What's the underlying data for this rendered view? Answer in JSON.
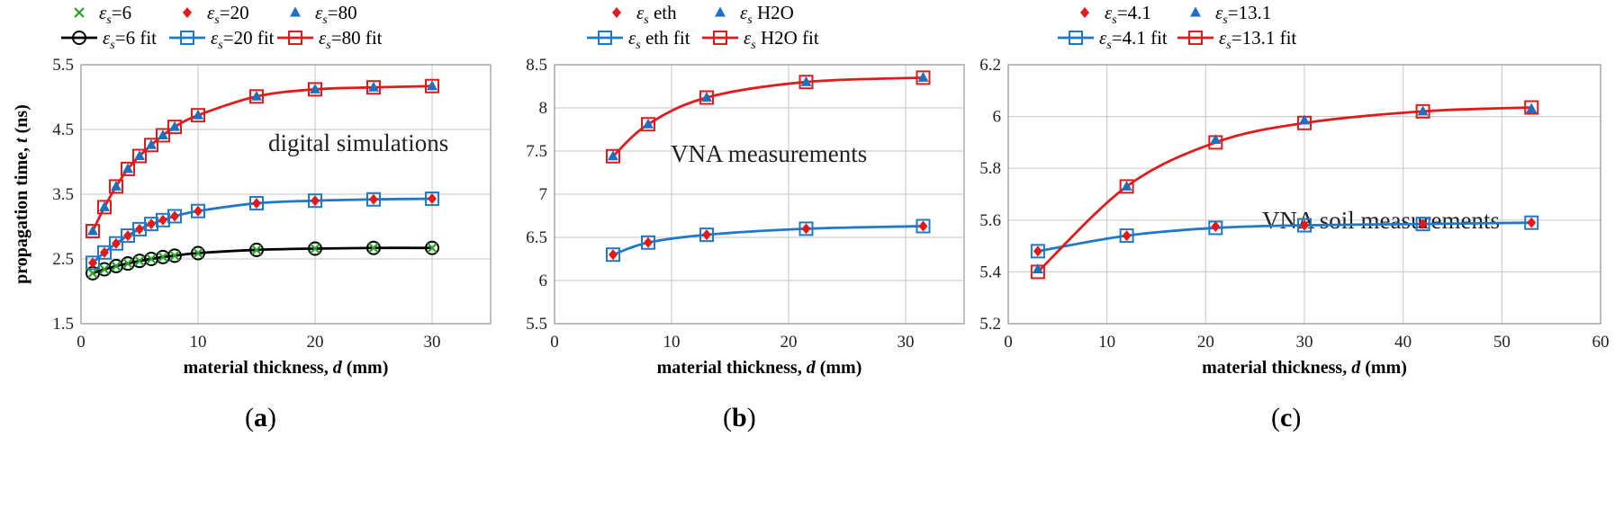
{
  "chart_data": [
    {
      "type": "scatter",
      "panel_label": "(a)",
      "annotation": "digital simulations",
      "xlabel_text": "material thickness, ",
      "xlabel_var": "d",
      "xlabel_unit": " (mm)",
      "ylabel_text": "propagation time, ",
      "ylabel_var": "t",
      "ylabel_unit": " (ns)",
      "xlim": [
        0,
        35
      ],
      "ylim": [
        1.5,
        5.5
      ],
      "xticks": [
        0,
        10,
        20,
        30
      ],
      "yticks": [
        1.5,
        2.5,
        3.5,
        4.5,
        5.5
      ],
      "xtick_labels": [
        "0",
        "10",
        "20",
        "30"
      ],
      "ytick_labels": [
        "1.5",
        "2.5",
        "3.5",
        "4.5",
        "5.5"
      ],
      "grid": true,
      "series": [
        {
          "name": "εs=6",
          "legend_main": "ε",
          "legend_sub": "s",
          "legend_rest": "=6",
          "marker": "x",
          "color": "#2ca02c",
          "x": [
            1,
            2,
            3,
            4,
            5,
            6,
            7,
            8,
            10,
            15,
            20,
            25,
            30
          ],
          "values": [
            2.28,
            2.34,
            2.39,
            2.43,
            2.47,
            2.5,
            2.53,
            2.55,
            2.59,
            2.64,
            2.66,
            2.67,
            2.67
          ]
        },
        {
          "name": "εs=20",
          "legend_main": "ε",
          "legend_sub": "s",
          "legend_rest": "=20",
          "marker": "diamond",
          "color": "#e31a1c",
          "x": [
            1,
            2,
            3,
            4,
            5,
            6,
            7,
            8,
            10,
            15,
            20,
            25,
            30
          ],
          "values": [
            2.44,
            2.6,
            2.74,
            2.86,
            2.96,
            3.04,
            3.1,
            3.16,
            3.24,
            3.36,
            3.4,
            3.42,
            3.43
          ]
        },
        {
          "name": "εs=80",
          "legend_main": "ε",
          "legend_sub": "s",
          "legend_rest": "=80",
          "marker": "triangle",
          "color": "#1f6fbf",
          "x": [
            1,
            2,
            3,
            4,
            5,
            6,
            7,
            8,
            10,
            15,
            20,
            25,
            30
          ],
          "values": [
            2.93,
            3.3,
            3.62,
            3.89,
            4.09,
            4.26,
            4.41,
            4.54,
            4.72,
            5.01,
            5.12,
            5.15,
            5.17
          ]
        },
        {
          "name": "εs=6 fit",
          "legend_main": "ε",
          "legend_sub": "s",
          "legend_rest": "=6 fit",
          "marker": "circle",
          "line": true,
          "color": "#000000",
          "x": [
            1,
            2,
            3,
            4,
            5,
            6,
            7,
            8,
            10,
            15,
            20,
            25,
            30
          ],
          "values": [
            2.28,
            2.34,
            2.39,
            2.43,
            2.47,
            2.5,
            2.53,
            2.55,
            2.59,
            2.64,
            2.66,
            2.67,
            2.67
          ]
        },
        {
          "name": "εs=20 fit",
          "legend_main": "ε",
          "legend_sub": "s",
          "legend_rest": "=20 fit",
          "marker": "square",
          "line": true,
          "color": "#1f78c8",
          "x": [
            1,
            2,
            3,
            4,
            5,
            6,
            7,
            8,
            10,
            15,
            20,
            25,
            30
          ],
          "values": [
            2.44,
            2.6,
            2.74,
            2.86,
            2.96,
            3.04,
            3.1,
            3.16,
            3.24,
            3.36,
            3.4,
            3.42,
            3.43
          ]
        },
        {
          "name": "εs=80 fit",
          "legend_main": "ε",
          "legend_sub": "s",
          "legend_rest": "=80 fit",
          "marker": "square",
          "line": true,
          "color": "#e31a1c",
          "x": [
            1,
            2,
            3,
            4,
            5,
            6,
            7,
            8,
            10,
            15,
            20,
            25,
            30
          ],
          "values": [
            2.93,
            3.3,
            3.62,
            3.89,
            4.09,
            4.26,
            4.41,
            4.54,
            4.72,
            5.01,
            5.12,
            5.15,
            5.17
          ]
        }
      ]
    },
    {
      "type": "scatter",
      "panel_label": "(b)",
      "annotation": "VNA measurements",
      "xlabel_text": "material thickness, ",
      "xlabel_var": "d",
      "xlabel_unit": " (mm)",
      "xlim": [
        0,
        35
      ],
      "ylim": [
        5.5,
        8.5
      ],
      "xticks": [
        0,
        10,
        20,
        30
      ],
      "yticks": [
        5.5,
        6,
        6.5,
        7,
        7.5,
        8,
        8.5
      ],
      "xtick_labels": [
        "0",
        "10",
        "20",
        "30"
      ],
      "ytick_labels": [
        "5.5",
        "6",
        "6.5",
        "7",
        "7.5",
        "8",
        "8.5"
      ],
      "grid": true,
      "series": [
        {
          "name": "εs eth",
          "legend_main": "ε",
          "legend_sub": "s",
          "legend_rest": " eth",
          "marker": "diamond",
          "color": "#e31a1c",
          "x": [
            5,
            8,
            13,
            21.5,
            31.5
          ],
          "values": [
            6.3,
            6.44,
            6.53,
            6.6,
            6.63
          ]
        },
        {
          "name": "εs H2O",
          "legend_main": "ε",
          "legend_sub": "s",
          "legend_rest": " H2O",
          "marker": "triangle",
          "color": "#1f6fbf",
          "x": [
            5,
            8,
            13,
            21.5,
            31.5
          ],
          "values": [
            7.44,
            7.81,
            8.12,
            8.3,
            8.35
          ]
        },
        {
          "name": "εs eth fit",
          "legend_main": "ε",
          "legend_sub": "s",
          "legend_rest": " eth fit",
          "marker": "square",
          "line": true,
          "color": "#1f78c8",
          "x": [
            5,
            8,
            13,
            21.5,
            31.5
          ],
          "values": [
            6.3,
            6.44,
            6.53,
            6.6,
            6.63
          ]
        },
        {
          "name": "εs H2O fit",
          "legend_main": "ε",
          "legend_sub": "s",
          "legend_rest": " H2O fit",
          "marker": "square",
          "line": true,
          "color": "#e31a1c",
          "x": [
            5,
            8,
            13,
            21.5,
            31.5
          ],
          "values": [
            7.44,
            7.81,
            8.12,
            8.3,
            8.35
          ]
        }
      ]
    },
    {
      "type": "scatter",
      "panel_label": "(c)",
      "annotation": "VNA soil measurements",
      "xlabel_text": "material thickness, ",
      "xlabel_var": "d",
      "xlabel_unit": " (mm)",
      "xlim": [
        0,
        60
      ],
      "ylim": [
        5.2,
        6.2
      ],
      "xticks": [
        0,
        10,
        20,
        30,
        40,
        50,
        60
      ],
      "yticks": [
        5.2,
        5.4,
        5.6,
        5.8,
        6,
        6.2
      ],
      "xtick_labels": [
        "0",
        "10",
        "20",
        "30",
        "40",
        "50",
        "60"
      ],
      "ytick_labels": [
        "5.2",
        "5.4",
        "5.6",
        "5.8",
        "6",
        "6.2"
      ],
      "grid": true,
      "series": [
        {
          "name": "εs=4.1",
          "legend_main": "ε",
          "legend_sub": "s",
          "legend_rest": "=4.1",
          "marker": "diamond",
          "color": "#e31a1c",
          "x": [
            3,
            12,
            21,
            30,
            42,
            53
          ],
          "values": [
            5.48,
            5.54,
            5.575,
            5.58,
            5.585,
            5.59
          ]
        },
        {
          "name": "εs=13.1",
          "legend_main": "ε",
          "legend_sub": "s",
          "legend_rest": "=13.1",
          "marker": "triangle",
          "color": "#1f6fbf",
          "x": [
            3,
            12,
            21,
            30,
            42,
            53
          ],
          "values": [
            5.41,
            5.73,
            5.91,
            5.985,
            6.02,
            6.03
          ]
        },
        {
          "name": "εs=4.1 fit",
          "legend_main": "ε",
          "legend_sub": "s",
          "legend_rest": "=4.1 fit",
          "marker": "square",
          "line": true,
          "color": "#1f78c8",
          "x": [
            3,
            12,
            21,
            30,
            42,
            53
          ],
          "values": [
            5.48,
            5.54,
            5.57,
            5.58,
            5.585,
            5.59
          ]
        },
        {
          "name": "εs=13.1 fit",
          "legend_main": "ε",
          "legend_sub": "s",
          "legend_rest": "=13.1 fit",
          "marker": "square",
          "line": true,
          "color": "#e31a1c",
          "x": [
            3,
            12,
            21,
            30,
            42,
            53
          ],
          "values": [
            5.4,
            5.73,
            5.9,
            5.975,
            6.02,
            6.035
          ]
        }
      ]
    }
  ]
}
